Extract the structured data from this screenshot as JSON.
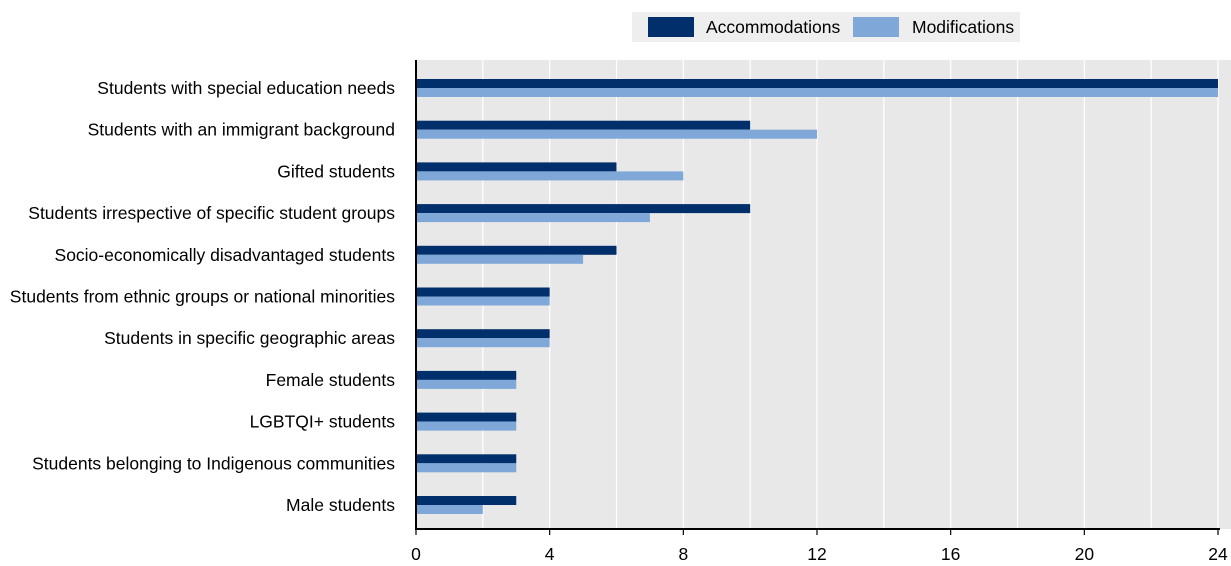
{
  "chart_data": {
    "type": "bar",
    "orientation": "horizontal",
    "categories": [
      "Students with special education needs",
      "Students with an immigrant background",
      "Gifted students",
      "Students irrespective of specific student groups",
      "Socio-economically disadvantaged students",
      "Students from ethnic groups or national minorities",
      "Students in specific geographic areas",
      "Female students",
      "LGBTQI+ students",
      "Students belonging to Indigenous communities",
      "Male students"
    ],
    "series": [
      {
        "name": "Accommodations",
        "color": "#002f6c",
        "values": [
          24,
          10,
          6,
          10,
          6,
          4,
          4,
          3,
          3,
          3,
          3
        ]
      },
      {
        "name": "Modifications",
        "color": "#7fa8d9",
        "values": [
          24,
          12,
          8,
          7,
          5,
          4,
          4,
          3,
          3,
          3,
          2
        ]
      }
    ],
    "xlim": [
      0,
      24
    ],
    "xticks": [
      0,
      4,
      8,
      12,
      16,
      20,
      24
    ],
    "xtick_labels": [
      "0",
      "4",
      "8",
      "12",
      "16",
      "20",
      "24"
    ],
    "grid": "vertical",
    "legend_position": "top",
    "plot_background": "#e8e8e8",
    "grid_color": "#ffffff"
  }
}
